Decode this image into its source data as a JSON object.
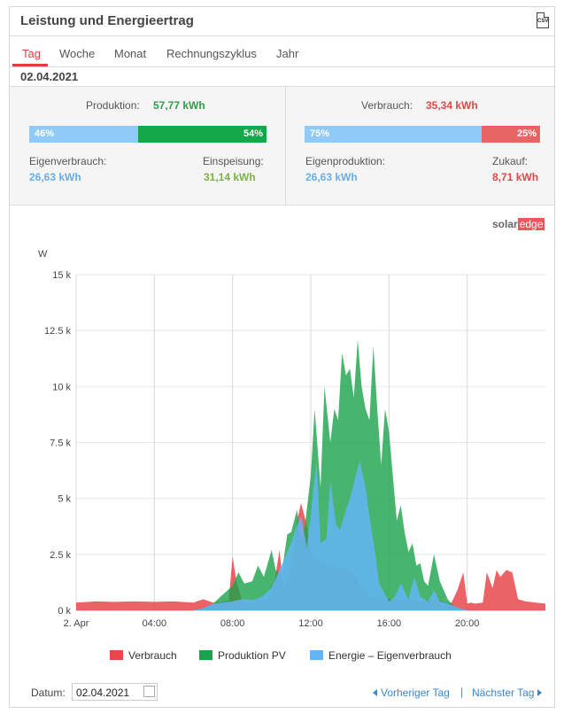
{
  "header": {
    "title": "Leistung und Energieertrag",
    "csv_label": "CSV"
  },
  "tabs": [
    {
      "label": "Tag",
      "active": true
    },
    {
      "label": "Woche"
    },
    {
      "label": "Monat"
    },
    {
      "label": "Rechnungszyklus"
    },
    {
      "label": "Jahr"
    }
  ],
  "date": "02.04.2021",
  "production": {
    "label": "Produktion:",
    "value": "57,77 kWh",
    "left_pct": "46%",
    "right_pct": "54%",
    "left_fraction": 0.46,
    "left_label": "Eigenverbrauch:",
    "left_value": "26,63 kWh",
    "right_label": "Einspeisung:",
    "right_value": "31,14 kWh"
  },
  "consumption": {
    "label": "Verbrauch:",
    "value": "35,34 kWh",
    "left_pct": "75%",
    "right_pct": "25%",
    "left_fraction": 0.75,
    "left_label": "Eigenproduktion:",
    "left_value": "26,63 kWh",
    "right_label": "Zukauf:",
    "right_value": "8,71 kWh"
  },
  "logo": {
    "solar": "solar",
    "edge": "edge"
  },
  "colors": {
    "consumption": "#e8484c",
    "production": "#1aa34a",
    "self": "#64b5f6",
    "prod_bar_left": "#90caf9",
    "prod_bar_right": "#14a84a",
    "cons_bar_left": "#90caf9",
    "cons_bar_right": "#e86565",
    "prod_value": "#2e9d4a",
    "cons_value": "#e04848",
    "blue_value": "#6aaee6"
  },
  "chart_data": {
    "type": "area",
    "ylabel": "W",
    "yticks": [
      "0 k",
      "2.5 k",
      "5 k",
      "7.5 k",
      "10 k",
      "12.5 k",
      "15 k"
    ],
    "ylim": [
      0,
      15000
    ],
    "xticks": [
      "2. Apr",
      "04:00",
      "08:00",
      "12:00",
      "16:00",
      "20:00"
    ],
    "xlim": [
      0,
      24
    ],
    "series": [
      {
        "name": "Verbrauch",
        "x": [
          0,
          1,
          2,
          3,
          4,
          5,
          6,
          6.5,
          7,
          7.5,
          7.8,
          8,
          8.2,
          8.5,
          9,
          9.5,
          10,
          10.2,
          10.4,
          10.6,
          11,
          11.3,
          11.5,
          11.8,
          12,
          12.5,
          13,
          14,
          15,
          16,
          17,
          18,
          18.5,
          19,
          19.2,
          19.5,
          19.8,
          20,
          20.2,
          20.4,
          20.8,
          21,
          21.3,
          21.5,
          21.7,
          22,
          22.3,
          22.6,
          23,
          23.5,
          24
        ],
        "y": [
          350,
          400,
          380,
          400,
          380,
          400,
          350,
          500,
          350,
          380,
          450,
          2400,
          1300,
          400,
          350,
          450,
          600,
          1600,
          2700,
          1000,
          1800,
          4000,
          4800,
          3800,
          2500,
          2200,
          2000,
          1800,
          600,
          500,
          400,
          450,
          500,
          300,
          350,
          900,
          1700,
          300,
          350,
          300,
          350,
          1700,
          1000,
          1800,
          1500,
          1800,
          1700,
          500,
          400,
          350,
          300
        ]
      },
      {
        "name": "Produktion PV",
        "x": [
          0,
          6,
          6.5,
          7,
          7.5,
          8,
          8.3,
          8.6,
          9,
          9.3,
          9.6,
          10,
          10.2,
          10.5,
          10.8,
          11,
          11.3,
          11.5,
          11.7,
          12,
          12.2,
          12.5,
          12.7,
          13,
          13.2,
          13.4,
          13.6,
          13.8,
          14,
          14.2,
          14.4,
          14.6,
          14.8,
          15,
          15.2,
          15.4,
          15.6,
          15.8,
          16,
          16.2,
          16.4,
          16.6,
          16.8,
          17,
          17.2,
          17.4,
          17.6,
          17.8,
          18,
          18.3,
          18.6,
          19,
          19.3,
          19.6,
          20,
          24
        ],
        "y": [
          0,
          0,
          100,
          300,
          700,
          1100,
          1700,
          1200,
          1300,
          2000,
          1500,
          2700,
          1800,
          1600,
          3400,
          3500,
          4500,
          3000,
          3800,
          6000,
          9000,
          5500,
          10000,
          7500,
          9000,
          8500,
          11500,
          10500,
          10800,
          9500,
          12100,
          10000,
          9000,
          8500,
          11800,
          9000,
          6500,
          9000,
          8000,
          6000,
          4000,
          4700,
          3500,
          2600,
          3000,
          2000,
          2100,
          1300,
          1100,
          2500,
          1300,
          500,
          200,
          100,
          0,
          0
        ]
      },
      {
        "name": "Energie – Eigenverbrauch",
        "x": [
          0,
          6,
          6.5,
          7,
          7.5,
          8,
          8.5,
          9,
          9.5,
          10,
          10.5,
          11,
          11.3,
          11.5,
          11.8,
          12,
          12.3,
          12.5,
          12.8,
          13,
          13.3,
          13.5,
          13.8,
          14,
          14.3,
          14.5,
          14.8,
          15,
          15.3,
          15.5,
          15.8,
          16,
          16.3,
          16.6,
          17,
          17.3,
          17.6,
          18,
          18.3,
          18.6,
          19,
          19.3,
          19.6,
          20,
          24
        ],
        "y": [
          0,
          0,
          100,
          300,
          350,
          400,
          500,
          450,
          600,
          1000,
          2000,
          3000,
          3800,
          4200,
          2800,
          4300,
          6700,
          3000,
          3200,
          5800,
          3800,
          3600,
          4500,
          5000,
          6000,
          6700,
          5500,
          4200,
          2500,
          1200,
          700,
          400,
          600,
          1200,
          500,
          1500,
          600,
          400,
          900,
          400,
          300,
          200,
          100,
          0,
          0
        ]
      }
    ],
    "legend": [
      "Verbrauch",
      "Produktion PV",
      "Energie – Eigenverbrauch"
    ]
  },
  "footer": {
    "datum_label": "Datum:",
    "datum_value": "02.04.2021",
    "prev": "Vorheriger Tag",
    "separator": "|",
    "next": "Nächster Tag"
  }
}
